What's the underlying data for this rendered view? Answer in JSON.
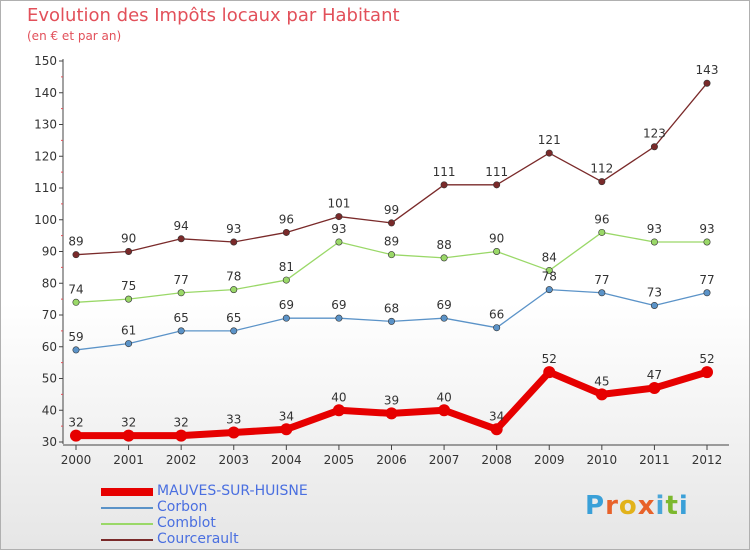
{
  "header": {
    "title": "Evolution des Impôts locaux par Habitant",
    "subtitle": "(en € et par an)"
  },
  "brand": {
    "text": "Proxiti",
    "letter_colors": [
      "#3aa0d8",
      "#e8622a",
      "#e2b21a",
      "#e8622a",
      "#4aa6d8",
      "#7cb82e",
      "#3aa0d8"
    ]
  },
  "chart_data": {
    "type": "line",
    "x": [
      "2000",
      "2001",
      "2002",
      "2003",
      "2004",
      "2005",
      "2006",
      "2007",
      "2008",
      "2009",
      "2010",
      "2011",
      "2012"
    ],
    "ylim": [
      30,
      150
    ],
    "yticks": [
      30,
      40,
      50,
      60,
      70,
      80,
      90,
      100,
      110,
      120,
      130,
      140,
      150
    ],
    "grid": false,
    "legend_position": "bottom-left",
    "series": [
      {
        "name": "MAUVES-SUR-HUISNE",
        "color": "#e60000",
        "values": [
          32,
          32,
          32,
          33,
          34,
          40,
          39,
          40,
          34,
          52,
          45,
          47,
          52
        ]
      },
      {
        "name": "Corbon",
        "color": "#5b93c8",
        "values": [
          59,
          61,
          65,
          65,
          69,
          69,
          68,
          69,
          66,
          78,
          77,
          73,
          77
        ]
      },
      {
        "name": "Comblot",
        "color": "#9ad868",
        "values": [
          74,
          75,
          77,
          78,
          81,
          93,
          89,
          88,
          90,
          84,
          96,
          93,
          93
        ]
      },
      {
        "name": "Courcerault",
        "color": "#7a2a2a",
        "values": [
          89,
          90,
          94,
          93,
          96,
          101,
          99,
          111,
          111,
          121,
          112,
          123,
          143
        ]
      }
    ]
  }
}
